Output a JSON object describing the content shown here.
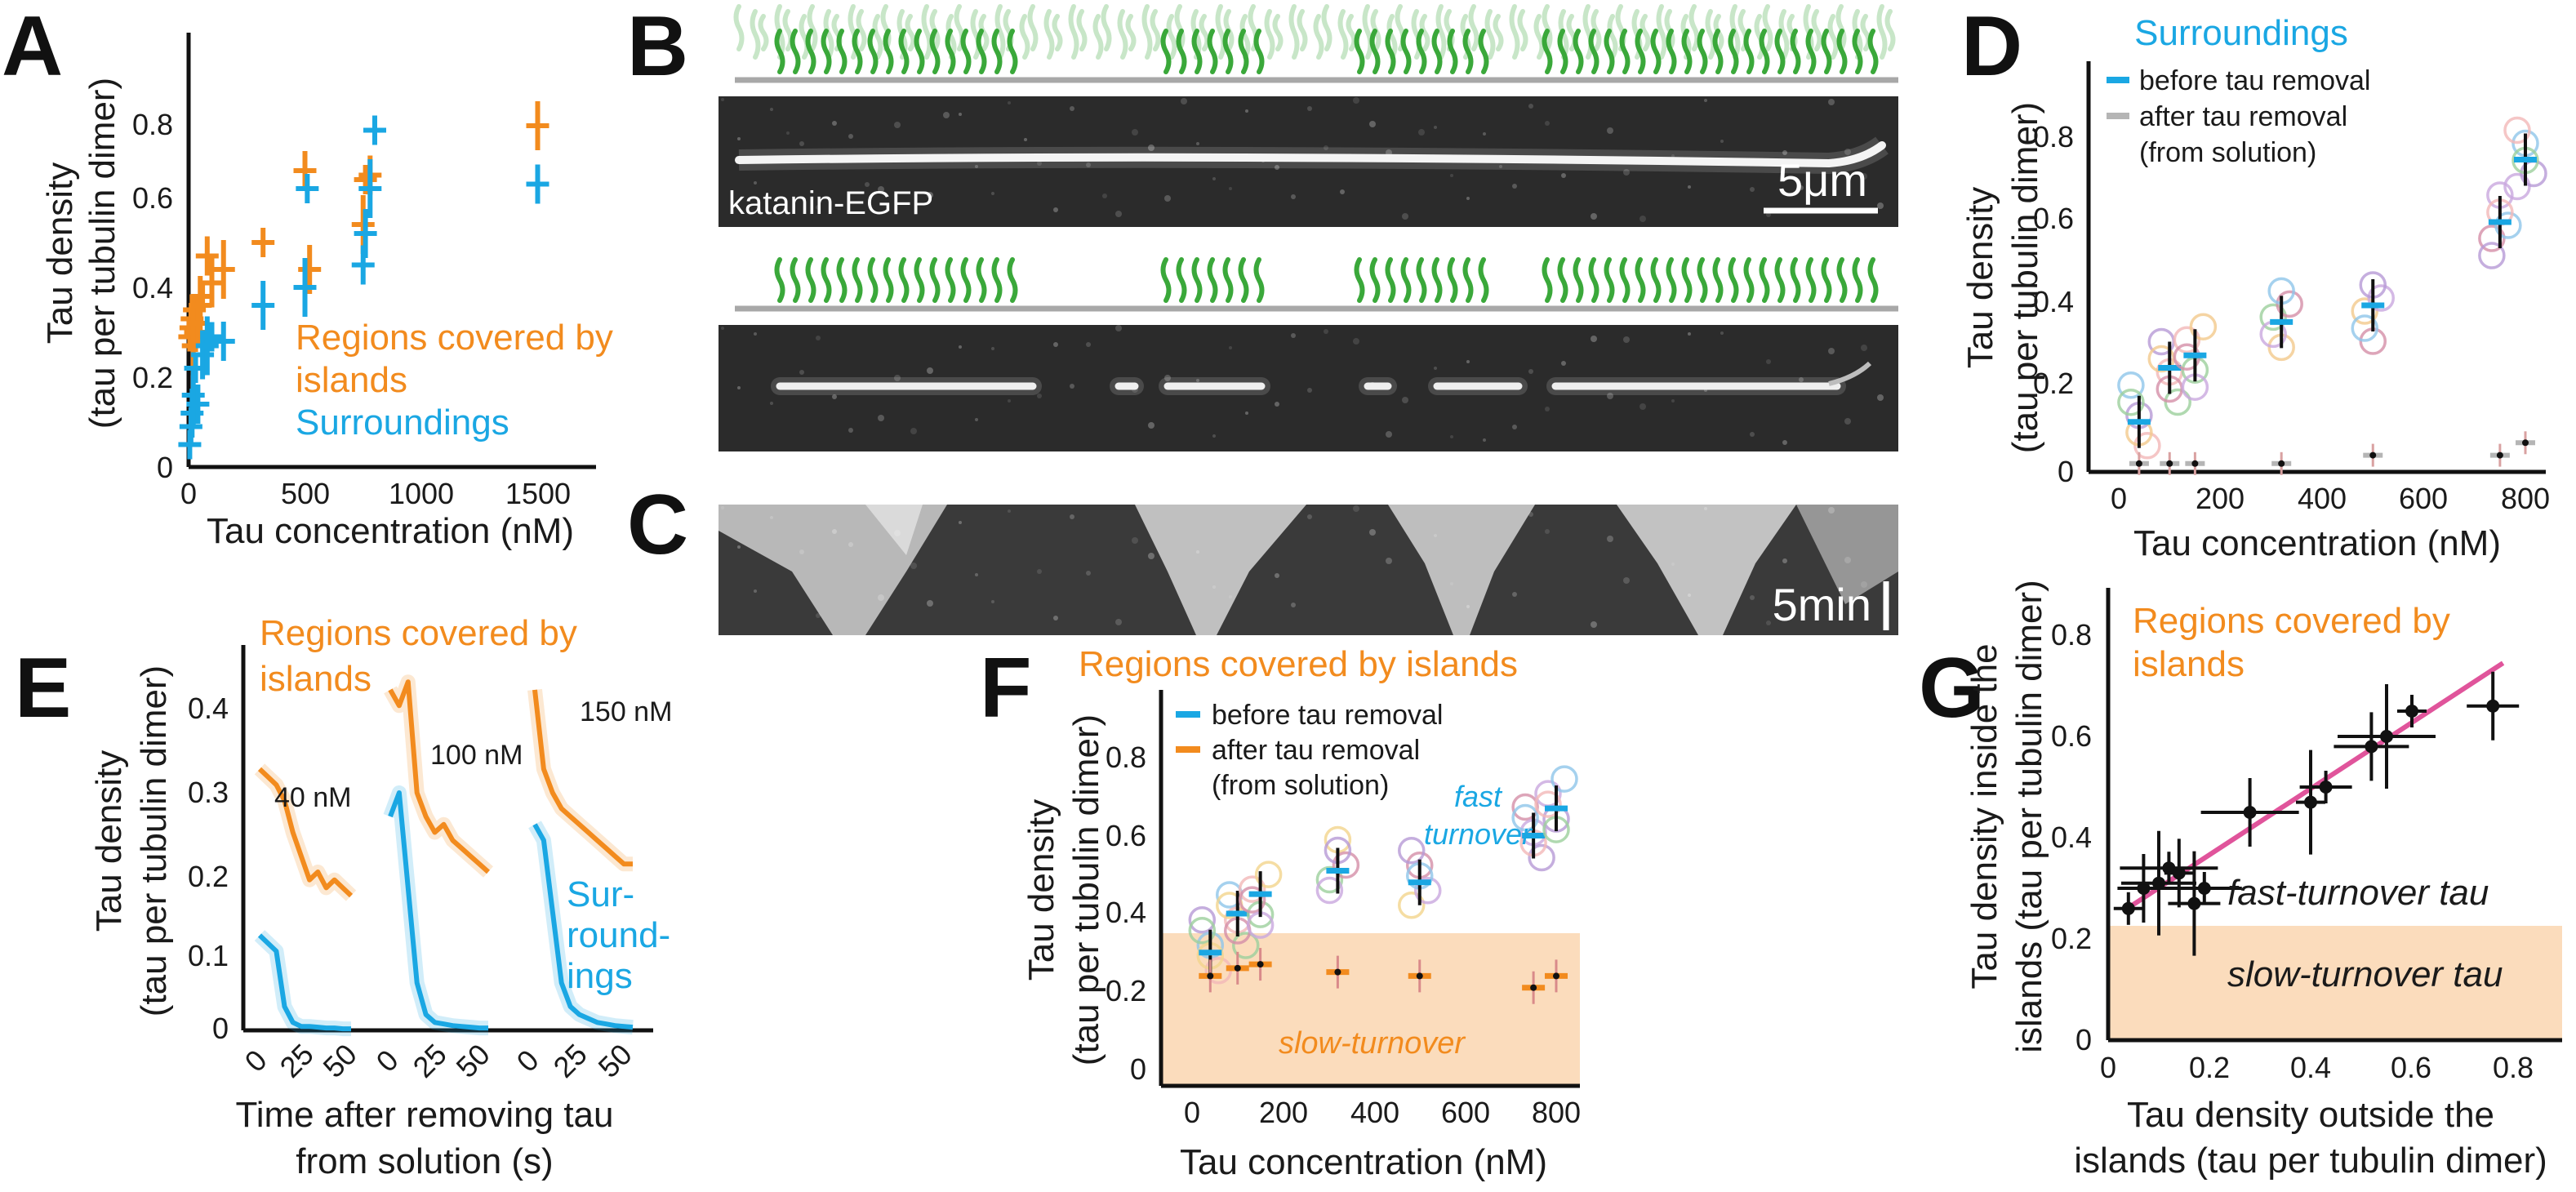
{
  "colors": {
    "orange": "#f28b1e",
    "blue": "#1aa7e3",
    "gray": "#b5b5b5",
    "pink": "#e0549b",
    "black": "#111111",
    "shade": "#fbdcbc",
    "green": "#3aa83a",
    "lightgreen": "#9bd29b"
  },
  "panels": {
    "A": {
      "label": "A",
      "xlabel": "Tau concentration (nM)",
      "ylabel_line1": "Tau density",
      "ylabel_line2": "(tau per tubulin dimer)",
      "xticks": [
        "0",
        "500",
        "1000",
        "1500"
      ],
      "yticks": [
        "0",
        "0.2",
        "0.4",
        "0.6",
        "0.8"
      ],
      "legend_orange_1": "Regions covered by",
      "legend_orange_2": "islands",
      "legend_blue": "Surroundings"
    },
    "B": {
      "label": "B",
      "image_label": "katanin-EGFP",
      "scalebar": "5μm"
    },
    "C": {
      "label": "C",
      "scalebar": "5min"
    },
    "D": {
      "label": "D",
      "title": "Surroundings",
      "legend_before": "before tau removal",
      "legend_after_1": "after tau removal",
      "legend_after_2": "(from solution)",
      "xlabel": "Tau concentration (nM)",
      "ylabel_line1": "Tau density",
      "ylabel_line2": "(tau per tubulin dimer)",
      "xticks": [
        "0",
        "200",
        "400",
        "600",
        "800"
      ],
      "yticks": [
        "0",
        "0.2",
        "0.4",
        "0.6",
        "0.8"
      ]
    },
    "E": {
      "label": "E",
      "legend_orange_1": "Regions covered by",
      "legend_orange_2": "islands",
      "legend_blue_1": "Sur-",
      "legend_blue_2": "round-",
      "legend_blue_3": "ings",
      "conc_1": "40 nM",
      "conc_2": "100 nM",
      "conc_3": "150 nM",
      "xlabel_line1": "Time after removing tau",
      "xlabel_line2": "from solution (s)",
      "ylabel_line1": "Tau density",
      "ylabel_line2": "(tau per tubulin dimer)",
      "xticks": [
        "0",
        "25",
        "50"
      ],
      "yticks": [
        "0",
        "0.1",
        "0.2",
        "0.3",
        "0.4"
      ]
    },
    "F": {
      "label": "F",
      "title": "Regions covered by islands",
      "legend_before": "before tau removal",
      "legend_after_1": "after tau removal",
      "legend_after_2": "(from solution)",
      "fast_1": "fast",
      "fast_2": "turnover",
      "slow": "slow-turnover",
      "xlabel": "Tau concentration (nM)",
      "ylabel_line1": "Tau density",
      "ylabel_line2": "(tau per tubulin dimer)",
      "xticks": [
        "0",
        "200",
        "400",
        "600",
        "800"
      ],
      "yticks": [
        "0",
        "0.2",
        "0.4",
        "0.6",
        "0.8"
      ]
    },
    "G": {
      "label": "G",
      "title_1": "Regions covered by",
      "title_2": "islands",
      "fast": "fast-turnover tau",
      "slow": "slow-turnover tau",
      "xlabel_line1": "Tau density outside the",
      "xlabel_line2": "islands (tau per tubulin dimer)",
      "ylabel_line1": "Tau density inside the",
      "ylabel_line2": "islands (tau per tubulin dimer)",
      "xticks": [
        "0",
        "0.2",
        "0.4",
        "0.6",
        "0.8"
      ],
      "yticks": [
        "0",
        "0.2",
        "0.4",
        "0.6",
        "0.8"
      ]
    }
  },
  "chart_data": [
    {
      "panel": "A",
      "type": "scatter",
      "xlim": [
        0,
        1600
      ],
      "ylim": [
        0,
        0.9
      ],
      "series": [
        {
          "name": "Regions covered by islands",
          "color": "orange",
          "x": [
            5,
            10,
            15,
            20,
            25,
            30,
            40,
            50,
            60,
            80,
            100,
            150,
            320,
            500,
            520,
            750,
            760,
            780,
            1500
          ],
          "y": [
            0.29,
            0.31,
            0.33,
            0.27,
            0.35,
            0.3,
            0.32,
            0.36,
            0.38,
            0.47,
            0.41,
            0.44,
            0.5,
            0.66,
            0.44,
            0.54,
            0.64,
            0.65,
            0.76
          ]
        },
        {
          "name": "Surroundings",
          "color": "blue",
          "x": [
            5,
            10,
            15,
            20,
            30,
            40,
            60,
            80,
            100,
            150,
            320,
            500,
            510,
            750,
            760,
            780,
            800,
            1500
          ],
          "y": [
            0.05,
            0.09,
            0.12,
            0.16,
            0.22,
            0.14,
            0.25,
            0.27,
            0.29,
            0.28,
            0.36,
            0.4,
            0.62,
            0.45,
            0.52,
            0.62,
            0.75,
            0.63
          ]
        }
      ]
    },
    {
      "panel": "D",
      "type": "scatter",
      "xlim": [
        -50,
        850
      ],
      "ylim": [
        0,
        0.9
      ],
      "series": [
        {
          "name": "before tau removal",
          "color": "blue",
          "x": [
            40,
            100,
            150,
            320,
            500,
            750,
            800
          ],
          "y": [
            0.12,
            0.25,
            0.28,
            0.36,
            0.4,
            0.6,
            0.75
          ]
        },
        {
          "name": "after tau removal (from solution)",
          "color": "gray",
          "x": [
            40,
            100,
            150,
            320,
            500,
            750,
            800
          ],
          "y": [
            0.02,
            0.02,
            0.02,
            0.02,
            0.04,
            0.04,
            0.07
          ]
        }
      ]
    },
    {
      "panel": "F",
      "type": "scatter",
      "xlim": [
        -50,
        850
      ],
      "ylim": [
        -0.05,
        0.95
      ],
      "series": [
        {
          "name": "before tau removal",
          "color": "blue",
          "x": [
            40,
            100,
            150,
            320,
            500,
            750,
            800
          ],
          "y": [
            0.3,
            0.4,
            0.45,
            0.51,
            0.48,
            0.6,
            0.67
          ]
        },
        {
          "name": "after tau removal (from solution)",
          "color": "orange",
          "x": [
            40,
            100,
            150,
            320,
            500,
            750,
            800
          ],
          "y": [
            0.24,
            0.26,
            0.27,
            0.25,
            0.24,
            0.21,
            0.24
          ]
        }
      ]
    },
    {
      "panel": "G",
      "type": "scatter",
      "xlim": [
        0,
        0.9
      ],
      "ylim": [
        0,
        0.9
      ],
      "series": [
        {
          "name": "Regions covered by islands",
          "color": "black",
          "x": [
            0.04,
            0.07,
            0.1,
            0.12,
            0.14,
            0.17,
            0.19,
            0.28,
            0.4,
            0.43,
            0.52,
            0.55,
            0.6,
            0.76
          ],
          "y": [
            0.26,
            0.3,
            0.31,
            0.34,
            0.33,
            0.27,
            0.3,
            0.45,
            0.47,
            0.5,
            0.58,
            0.6,
            0.65,
            0.66
          ]
        }
      ]
    }
  ]
}
